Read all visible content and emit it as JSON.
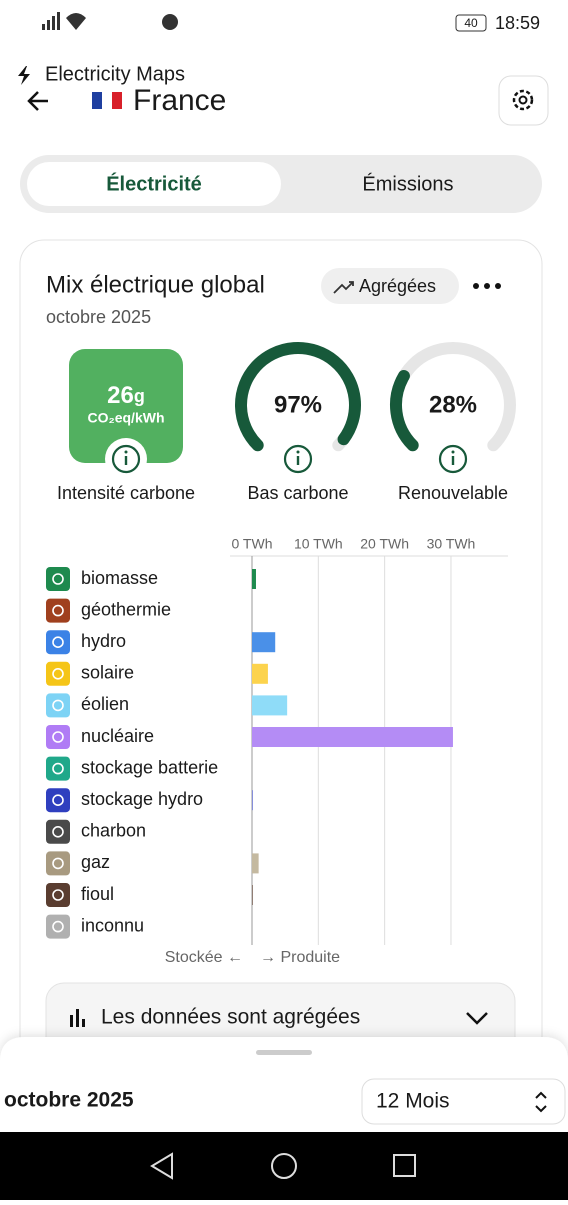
{
  "status_bar": {
    "battery": "40",
    "time": "18:59"
  },
  "header": {
    "app": "Electricity Maps",
    "country": "France"
  },
  "tabs": [
    "Électricité",
    "Émissions"
  ],
  "card": {
    "title": "Mix électrique global",
    "pill": "Agrégées",
    "period": "octobre 2025",
    "carbon": {
      "value": "26",
      "unit": "g",
      "sub": "CO₂eq/kWh",
      "label": "Intensité carbone",
      "color": "#52b060"
    },
    "gauges": [
      {
        "label": "Bas carbone",
        "value": 97,
        "value_label": "97%",
        "color": "#17593a"
      },
      {
        "label": "Renouvelable",
        "value": 28,
        "value_label": "28%",
        "color": "#17593a"
      }
    ],
    "mix_chart": {
      "type": "bar",
      "orientation": "horizontal",
      "categories": [
        "biomasse",
        "géothermie",
        "hydro",
        "solaire",
        "éolien",
        "nucléaire",
        "stockage batterie",
        "stockage hydro",
        "charbon",
        "gaz",
        "fioul",
        "inconnu"
      ],
      "icon_colors": [
        "#1e8a4e",
        "#a0401e",
        "#3b82e6",
        "#f5c518",
        "#7dd3f5",
        "#b07cf5",
        "#20a88a",
        "#2f3fbf",
        "#4a4a4a",
        "#a89a80",
        "#5a3d30",
        "#b0b0b0"
      ],
      "values": [
        0.6,
        0,
        3.5,
        2.4,
        5.3,
        30.3,
        0,
        0.1,
        0,
        1.0,
        0.1,
        0
      ],
      "bar_colors": [
        "#1e8a4e",
        "#a0401e",
        "#4a90e8",
        "#fcd34d",
        "#8fdcf8",
        "#b48cf5",
        "#20a88a",
        "#4a55c8",
        "#4a4a4a",
        "#c4b9a0",
        "#5a3d30",
        "#b0b0b0"
      ],
      "xlim": [
        0,
        38.6
      ],
      "xticks": [
        {
          "value": 0,
          "label": "0 TWh"
        },
        {
          "value": 10,
          "label": "10 TWh"
        },
        {
          "value": 20,
          "label": "20 TWh"
        },
        {
          "value": 30,
          "label": "30 TWh"
        }
      ],
      "grid": true,
      "left_label": "Stockée ←",
      "right_label": "→ Produite"
    },
    "aggregated": "Les données sont agrégées"
  },
  "footer": {
    "period": "octobre 2025",
    "range": "12 Mois"
  }
}
